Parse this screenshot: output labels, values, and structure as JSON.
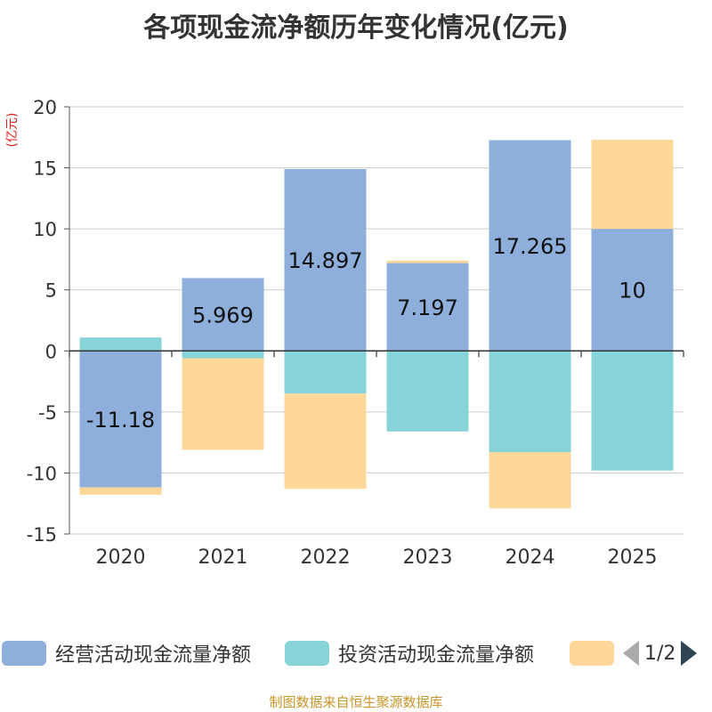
{
  "title": "各项现金流净额历年变化情况(亿元)",
  "source": "制图数据来自恒生聚源数据库",
  "legend": {
    "items": [
      {
        "label": "经营活动现金流量净额",
        "color": "#8eaedb"
      },
      {
        "label": "投资活动现金流量净额",
        "color": "#87d4d8"
      },
      {
        "label": "",
        "color": "#ffd899"
      }
    ],
    "page_text": "1/2"
  },
  "chart_data": {
    "type": "bar",
    "stacked": true,
    "title": "各项现金流净额历年变化情况(亿元)",
    "ylabel": "(亿元)",
    "xlabel": "",
    "ylim": [
      -15,
      20
    ],
    "yticks": [
      -15,
      -10,
      -5,
      0,
      5,
      10,
      15,
      20
    ],
    "categories": [
      "2020",
      "2021",
      "2022",
      "2023",
      "2024",
      "2025"
    ],
    "series": [
      {
        "name": "经营活动现金流量净额",
        "color": "#8eaedb",
        "values": [
          -11.18,
          5.969,
          14.897,
          7.197,
          17.265,
          10
        ]
      },
      {
        "name": "投资活动现金流量净额",
        "color": "#87d4d8",
        "values": [
          1.1,
          -0.6,
          -3.5,
          -6.6,
          -8.3,
          -9.8
        ]
      },
      {
        "name": "",
        "color": "#ffd899",
        "values": [
          -0.6,
          -7.5,
          -7.8,
          0.2,
          -4.6,
          7.3
        ]
      }
    ],
    "data_labels": [
      "-11.18",
      "5.969",
      "14.897",
      "7.197",
      "17.265",
      "10"
    ]
  }
}
